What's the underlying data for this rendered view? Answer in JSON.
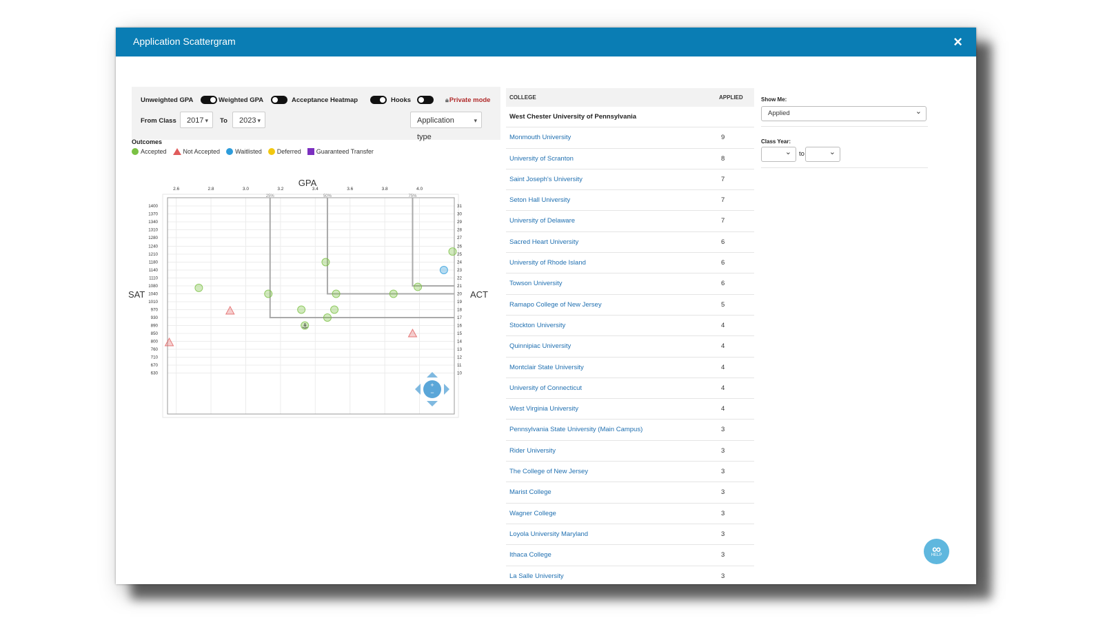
{
  "modal": {
    "title": "Application Scattergram",
    "close_icon": "×"
  },
  "controls": {
    "unweighted_gpa": "Unweighted GPA",
    "weighted_gpa": "Weighted GPA",
    "acceptance_heatmap": "Acceptance Heatmap",
    "hooks": "Hooks",
    "private_mode": "Private mode",
    "from_class_label": "From Class",
    "from_class_value": "2017",
    "to_label": "To",
    "to_value": "2023",
    "application_type": "Application type",
    "toggles": {
      "unweighted_gpa": true,
      "weighted_gpa": false,
      "acceptance_heatmap": true,
      "hooks": false
    }
  },
  "legend": {
    "title": "Outcomes",
    "items": [
      {
        "label": "Accepted",
        "color": "#7ac143",
        "shape": "circle"
      },
      {
        "label": "Not Accepted",
        "color": "#e05c5c",
        "shape": "triangle"
      },
      {
        "label": "Waitlisted",
        "color": "#2d9cdb",
        "shape": "circle"
      },
      {
        "label": "Deferred",
        "color": "#f2c80f",
        "shape": "circle"
      },
      {
        "label": "Guaranteed Transfer",
        "color": "#7b2fbf",
        "shape": "square"
      }
    ]
  },
  "chart_data": {
    "type": "scatter",
    "title": "",
    "xlabel": "GPA",
    "ylabel": "SAT",
    "y2label": "ACT",
    "xlim": [
      2.55,
      4.2
    ],
    "x_ticks": [
      "2.6",
      "2.8",
      "3.0",
      "3.2",
      "3.4",
      "3.6",
      "3.8",
      "4.0"
    ],
    "percentile_labels": [
      "25%",
      "50%",
      "75%"
    ],
    "percentile_gpa": [
      3.14,
      3.47,
      3.96
    ],
    "percentile_sat": [
      930,
      1040,
      1080
    ],
    "sat_ticks": [
      "1400",
      "1370",
      "1340",
      "1310",
      "1280",
      "1240",
      "1210",
      "1180",
      "1140",
      "1110",
      "1080",
      "1040",
      "1010",
      "970",
      "930",
      "890",
      "850",
      "800",
      "760",
      "710",
      "670",
      "630"
    ],
    "act_ticks": [
      "31",
      "30",
      "29",
      "28",
      "27",
      "26",
      "25",
      "24",
      "23",
      "22",
      "21",
      "20",
      "19",
      "18",
      "17",
      "16",
      "15",
      "14",
      "13",
      "12",
      "11",
      "10"
    ],
    "grid": true,
    "series": [
      {
        "name": "Accepted",
        "color": "#7ac143",
        "points": [
          {
            "x": 2.73,
            "y": 1070
          },
          {
            "x": 3.13,
            "y": 1040
          },
          {
            "x": 3.46,
            "y": 1180
          },
          {
            "x": 3.52,
            "y": 1040
          },
          {
            "x": 3.85,
            "y": 1040
          },
          {
            "x": 3.99,
            "y": 1075
          },
          {
            "x": 4.19,
            "y": 1220
          },
          {
            "x": 3.32,
            "y": 970
          },
          {
            "x": 3.51,
            "y": 970
          },
          {
            "x": 3.47,
            "y": 930
          },
          {
            "x": 3.34,
            "y": 890
          }
        ]
      },
      {
        "name": "Not Accepted",
        "color": "#e05c5c",
        "points": [
          {
            "x": 2.91,
            "y": 965
          },
          {
            "x": 2.56,
            "y": 795
          },
          {
            "x": 3.96,
            "y": 850
          }
        ]
      },
      {
        "name": "Waitlisted",
        "color": "#2d9cdb",
        "points": [
          {
            "x": 4.14,
            "y": 1140
          }
        ]
      }
    ]
  },
  "table": {
    "col_college": "COLLEGE",
    "col_applied": "APPLIED",
    "home_college": "West Chester University of Pennsylvania",
    "rows": [
      {
        "name": "Monmouth University",
        "applied": "9"
      },
      {
        "name": "University of Scranton",
        "applied": "8"
      },
      {
        "name": "Saint Joseph's University",
        "applied": "7"
      },
      {
        "name": "Seton Hall University",
        "applied": "7"
      },
      {
        "name": "University of Delaware",
        "applied": "7"
      },
      {
        "name": "Sacred Heart University",
        "applied": "6"
      },
      {
        "name": "University of Rhode Island",
        "applied": "6"
      },
      {
        "name": "Towson University",
        "applied": "6"
      },
      {
        "name": "Ramapo College of New Jersey",
        "applied": "5"
      },
      {
        "name": "Stockton University",
        "applied": "4"
      },
      {
        "name": "Quinnipiac University",
        "applied": "4"
      },
      {
        "name": "Montclair State University",
        "applied": "4"
      },
      {
        "name": "University of Connecticut",
        "applied": "4"
      },
      {
        "name": "West Virginia University",
        "applied": "4"
      },
      {
        "name": "Pennsylvania State University (Main Campus)",
        "applied": "3"
      },
      {
        "name": "Rider University",
        "applied": "3"
      },
      {
        "name": "The College of New Jersey",
        "applied": "3"
      },
      {
        "name": "Marist College",
        "applied": "3"
      },
      {
        "name": "Wagner College",
        "applied": "3"
      },
      {
        "name": "Loyola University Maryland",
        "applied": "3"
      },
      {
        "name": "Ithaca College",
        "applied": "3"
      },
      {
        "name": "La Salle University",
        "applied": "3"
      }
    ]
  },
  "filters": {
    "show_me_label": "Show Me:",
    "show_me_value": "Applied",
    "class_year_label": "Class Year:",
    "to_label": "to"
  },
  "help": {
    "label": "HELP",
    "icon": "infinity-icon"
  }
}
